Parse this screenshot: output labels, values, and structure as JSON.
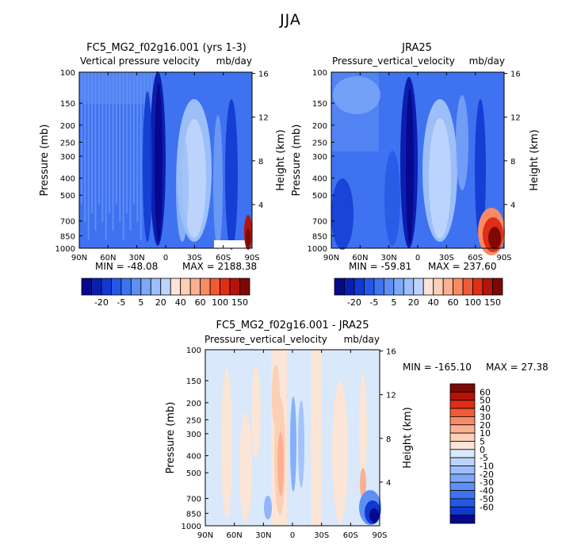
{
  "page": {
    "title": "JJA"
  },
  "colors": {
    "blue_levels": [
      "#08088c",
      "#0a1fb0",
      "#1138d0",
      "#2457e6",
      "#3f72f0",
      "#5d8ff5",
      "#7ea8f7",
      "#9cbff9",
      "#bcd4fb"
    ],
    "neutral": [
      "#d9e8fb",
      "#fbe5d6"
    ],
    "red_levels": [
      "#fcd0b6",
      "#fbb091",
      "#f88a66",
      "#f05a36",
      "#de2e15",
      "#b41408",
      "#7c0903"
    ]
  },
  "panels": [
    {
      "id": "model",
      "title": "FC5_MG2_f02g16.001 (yrs 1-3)",
      "subtitle": "Vertical pressure velocity",
      "units": "mb/day",
      "ylabel": "Pressure (mb)",
      "y2label": "Height (km)",
      "min_label": "MIN = -48.08",
      "max_label": "MAX = 2188.38"
    },
    {
      "id": "obs",
      "title": "JRA25",
      "subtitle": "Pressure_vertical_velocity",
      "units": "mb/day",
      "ylabel": "Pressure (mb)",
      "y2label": "Height (km)",
      "min_label": "MIN = -59.81",
      "max_label": "MAX = 237.60"
    },
    {
      "id": "diff",
      "title": "FC5_MG2_f02g16.001 - JRA25",
      "subtitle": "Pressure_vertical_velocity",
      "units": "mb/day",
      "ylabel": "Pressure (mb)",
      "y2label": "Height (km)",
      "min_label": "MIN = -165.10",
      "max_label": "MAX =  27.38"
    }
  ],
  "colorbars": {
    "top": {
      "labels": [
        "-20",
        "-5",
        "5",
        "20",
        "40",
        "60",
        "100",
        "150"
      ]
    },
    "diff": {
      "labels": [
        "60",
        "50",
        "40",
        "30",
        "20",
        "10",
        "5",
        "0",
        "-5",
        "-10",
        "-20",
        "-30",
        "-40",
        "-50",
        "-60"
      ]
    }
  },
  "chart_data": [
    {
      "type": "heatmap",
      "title": "FC5_MG2_f02g16.001 (yrs 1-3)",
      "subtitle": "Vertical pressure velocity",
      "units": "mb/day",
      "xlabel": "",
      "ylabel": "Pressure (mb)",
      "y2label": "Height (km)",
      "x_ticks": [
        "90N",
        "60N",
        "30N",
        "0",
        "30S",
        "60S",
        "90S"
      ],
      "y_ticks": [
        "100",
        "150",
        "200",
        "250",
        "300",
        "400",
        "500",
        "700",
        "850",
        "1000"
      ],
      "y2_ticks": [
        "16",
        "12",
        "8",
        "4"
      ],
      "x_range": [
        90,
        -90
      ],
      "y_range": [
        100,
        1000
      ],
      "y_scale": "log",
      "min": -48.08,
      "max": 2188.38,
      "levels": [
        -20,
        -5,
        5,
        20,
        40,
        60,
        100,
        150
      ]
    },
    {
      "type": "heatmap",
      "title": "JRA25",
      "subtitle": "Pressure_vertical_velocity",
      "units": "mb/day",
      "xlabel": "",
      "ylabel": "Pressure (mb)",
      "y2label": "Height (km)",
      "x_ticks": [
        "90N",
        "60N",
        "30N",
        "0",
        "30S",
        "60S",
        "90S"
      ],
      "y_ticks": [
        "100",
        "150",
        "200",
        "250",
        "300",
        "400",
        "500",
        "700",
        "850",
        "1000"
      ],
      "y2_ticks": [
        "16",
        "12",
        "8",
        "4"
      ],
      "x_range": [
        90,
        -90
      ],
      "y_range": [
        100,
        1000
      ],
      "y_scale": "log",
      "min": -59.81,
      "max": 237.6,
      "levels": [
        -20,
        -5,
        5,
        20,
        40,
        60,
        100,
        150
      ]
    },
    {
      "type": "heatmap",
      "title": "FC5_MG2_f02g16.001 - JRA25",
      "subtitle": "Pressure_vertical_velocity",
      "units": "mb/day",
      "xlabel": "",
      "ylabel": "Pressure (mb)",
      "y2label": "Height (km)",
      "x_ticks": [
        "90N",
        "60N",
        "30N",
        "0",
        "30S",
        "60S",
        "90S"
      ],
      "y_ticks": [
        "100",
        "150",
        "200",
        "250",
        "300",
        "400",
        "500",
        "700",
        "850",
        "1000"
      ],
      "y2_ticks": [
        "16",
        "12",
        "8",
        "4"
      ],
      "x_range": [
        90,
        -90
      ],
      "y_range": [
        100,
        1000
      ],
      "y_scale": "log",
      "min": -165.1,
      "max": 27.38,
      "levels": [
        -60,
        -50,
        -40,
        -30,
        -20,
        -10,
        -5,
        0,
        5,
        10,
        20,
        30,
        40,
        50,
        60
      ]
    }
  ]
}
